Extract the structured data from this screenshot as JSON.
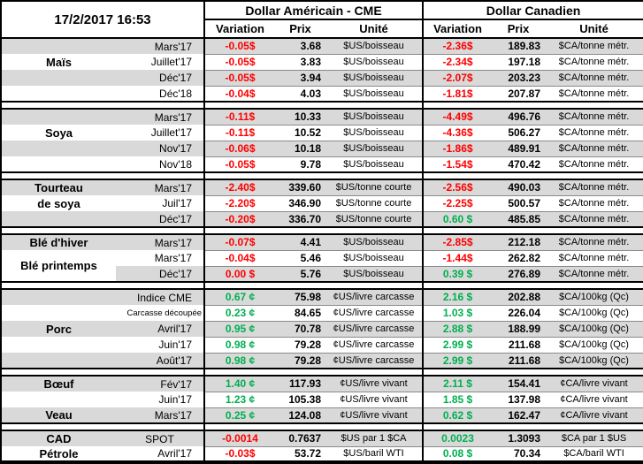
{
  "header": {
    "datetime": "17/2/2017 16:53",
    "usd_title": "Dollar Américain - CME",
    "cad_title": "Dollar Canadien",
    "columns": {
      "variation": "Variation",
      "prix": "Prix",
      "unite": "Unité"
    }
  },
  "colors": {
    "negative": "#FF0000",
    "positive": "#00B050",
    "stripe": "#D9D9D9",
    "border": "#000000"
  },
  "groups": [
    {
      "rows": [
        {
          "label": "",
          "month": "Mars'17",
          "us_var": "-0.05$",
          "us_var_color": "neg",
          "us_prix": "3.68",
          "us_unit": "$US/boisseau",
          "ca_var": "-2.36$",
          "ca_var_color": "neg",
          "ca_prix": "189.83",
          "ca_unit": "$CA/tonne métr."
        },
        {
          "label": "Maïs",
          "month": "Juillet'17",
          "us_var": "-0.05$",
          "us_var_color": "neg",
          "us_prix": "3.83",
          "us_unit": "$US/boisseau",
          "ca_var": "-2.34$",
          "ca_var_color": "neg",
          "ca_prix": "197.18",
          "ca_unit": "$CA/tonne métr."
        },
        {
          "label": "",
          "month": "Déc'17",
          "us_var": "-0.05$",
          "us_var_color": "neg",
          "us_prix": "3.94",
          "us_unit": "$US/boisseau",
          "ca_var": "-2.07$",
          "ca_var_color": "neg",
          "ca_prix": "203.23",
          "ca_unit": "$CA/tonne métr."
        },
        {
          "label": "",
          "month": "Déc'18",
          "us_var": "-0.04$",
          "us_var_color": "neg",
          "us_prix": "4.03",
          "us_unit": "$US/boisseau",
          "ca_var": "-1.81$",
          "ca_var_color": "neg",
          "ca_prix": "207.87",
          "ca_unit": "$CA/tonne métr."
        }
      ]
    },
    {
      "rows": [
        {
          "label": "",
          "month": "Mars'17",
          "us_var": "-0.11$",
          "us_var_color": "neg",
          "us_prix": "10.33",
          "us_unit": "$US/boisseau",
          "ca_var": "-4.49$",
          "ca_var_color": "neg",
          "ca_prix": "496.76",
          "ca_unit": "$CA/tonne métr."
        },
        {
          "label": "Soya",
          "month": "Juillet'17",
          "us_var": "-0.11$",
          "us_var_color": "neg",
          "us_prix": "10.52",
          "us_unit": "$US/boisseau",
          "ca_var": "-4.36$",
          "ca_var_color": "neg",
          "ca_prix": "506.27",
          "ca_unit": "$CA/tonne métr."
        },
        {
          "label": "",
          "month": "Nov'17",
          "us_var": "-0.06$",
          "us_var_color": "neg",
          "us_prix": "10.18",
          "us_unit": "$US/boisseau",
          "ca_var": "-1.86$",
          "ca_var_color": "neg",
          "ca_prix": "489.91",
          "ca_unit": "$CA/tonne métr."
        },
        {
          "label": "",
          "month": "Nov'18",
          "us_var": "-0.05$",
          "us_var_color": "neg",
          "us_prix": "9.78",
          "us_unit": "$US/boisseau",
          "ca_var": "-1.54$",
          "ca_var_color": "neg",
          "ca_prix": "470.42",
          "ca_unit": "$CA/tonne métr."
        }
      ]
    },
    {
      "rows": [
        {
          "label": "Tourteau",
          "month": "Mars'17",
          "us_var": "-2.40$",
          "us_var_color": "neg",
          "us_prix": "339.60",
          "us_unit": "$US/tonne courte",
          "ca_var": "-2.56$",
          "ca_var_color": "neg",
          "ca_prix": "490.03",
          "ca_unit": "$CA/tonne métr."
        },
        {
          "label": "de soya",
          "month": "Juil'17",
          "us_var": "-2.20$",
          "us_var_color": "neg",
          "us_prix": "346.90",
          "us_unit": "$US/tonne courte",
          "ca_var": "-2.25$",
          "ca_var_color": "neg",
          "ca_prix": "500.57",
          "ca_unit": "$CA/tonne métr."
        },
        {
          "label": "",
          "month": "Déc'17",
          "us_var": "-0.20$",
          "us_var_color": "neg",
          "us_prix": "336.70",
          "us_unit": "$US/tonne courte",
          "ca_var": "0.60 $",
          "ca_var_color": "pos",
          "ca_prix": "485.85",
          "ca_unit": "$CA/tonne métr."
        }
      ]
    },
    {
      "rows": [
        {
          "label": "Blé d'hiver",
          "month": "Mars'17",
          "us_var": "-0.07$",
          "us_var_color": "neg",
          "us_prix": "4.41",
          "us_unit": "$US/boisseau",
          "ca_var": "-2.85$",
          "ca_var_color": "neg",
          "ca_prix": "212.18",
          "ca_unit": "$CA/tonne métr."
        },
        {
          "label": "Blé printemps",
          "label_rowspan": 2,
          "month": "Mars'17",
          "us_var": "-0.04$",
          "us_var_color": "neg",
          "us_prix": "5.46",
          "us_unit": "$US/boisseau",
          "ca_var": "-1.44$",
          "ca_var_color": "neg",
          "ca_prix": "262.82",
          "ca_unit": "$CA/tonne métr."
        },
        {
          "label": "",
          "month": "Déc'17",
          "us_var": "0.00 $",
          "us_var_color": "neg",
          "us_prix": "5.76",
          "us_unit": "$US/boisseau",
          "ca_var": "0.39 $",
          "ca_var_color": "pos",
          "ca_prix": "276.89",
          "ca_unit": "$CA/tonne métr."
        }
      ]
    },
    {
      "rows": [
        {
          "label": "",
          "month": "Indice CME",
          "us_var": "0.67 ¢",
          "us_var_color": "pos",
          "us_prix": "75.98",
          "us_unit": "¢US/livre carcasse",
          "ca_var": "2.16 $",
          "ca_var_color": "pos",
          "ca_prix": "202.88",
          "ca_unit": "$CA/100kg (Qc)"
        },
        {
          "label": "",
          "month": "Carcasse découpée",
          "month_small": true,
          "us_var": "0.23 ¢",
          "us_var_color": "pos",
          "us_prix": "84.65",
          "us_unit": "¢US/livre carcasse",
          "ca_var": "1.03 $",
          "ca_var_color": "pos",
          "ca_prix": "226.04",
          "ca_unit": "$CA/100kg (Qc)"
        },
        {
          "label": "Porc",
          "month": "Avril'17",
          "us_var": "0.95 ¢",
          "us_var_color": "pos",
          "us_prix": "70.78",
          "us_unit": "¢US/livre carcasse",
          "ca_var": "2.88 $",
          "ca_var_color": "pos",
          "ca_prix": "188.99",
          "ca_unit": "$CA/100kg (Qc)"
        },
        {
          "label": "",
          "month": "Juin'17",
          "us_var": "0.98 ¢",
          "us_var_color": "pos",
          "us_prix": "79.28",
          "us_unit": "¢US/livre carcasse",
          "ca_var": "2.99 $",
          "ca_var_color": "pos",
          "ca_prix": "211.68",
          "ca_unit": "$CA/100kg (Qc)"
        },
        {
          "label": "",
          "month": "Août'17",
          "us_var": "0.98 ¢",
          "us_var_color": "pos",
          "us_prix": "79.28",
          "us_unit": "¢US/livre carcasse",
          "ca_var": "2.99 $",
          "ca_var_color": "pos",
          "ca_prix": "211.68",
          "ca_unit": "$CA/100kg (Qc)"
        }
      ]
    },
    {
      "rows": [
        {
          "label": "Bœuf",
          "month": "Fév'17",
          "us_var": "1.40 ¢",
          "us_var_color": "pos",
          "us_prix": "117.93",
          "us_unit": "¢US/livre vivant",
          "ca_var": "2.11 $",
          "ca_var_color": "pos",
          "ca_prix": "154.41",
          "ca_unit": "¢CA/livre vivant"
        },
        {
          "label": "",
          "month": "Juin'17",
          "us_var": "1.23 ¢",
          "us_var_color": "pos",
          "us_prix": "105.38",
          "us_unit": "¢US/livre vivant",
          "ca_var": "1.85 $",
          "ca_var_color": "pos",
          "ca_prix": "137.98",
          "ca_unit": "¢CA/livre vivant"
        },
        {
          "label": "Veau",
          "month": "Mars'17",
          "us_var": "0.25 ¢",
          "us_var_color": "pos",
          "us_prix": "124.08",
          "us_unit": "¢US/livre vivant",
          "ca_var": "0.62 $",
          "ca_var_color": "pos",
          "ca_prix": "162.47",
          "ca_unit": "¢CA/livre vivant"
        }
      ]
    },
    {
      "rows": [
        {
          "label": "CAD",
          "month": "SPOT",
          "month_center": true,
          "us_var": "-0.0014",
          "us_var_color": "neg",
          "us_prix": "0.7637",
          "us_unit": "$US par 1 $CA",
          "ca_var": "0.0023",
          "ca_var_color": "pos",
          "ca_prix": "1.3093",
          "ca_unit": "$CA par 1 $US"
        },
        {
          "label": "Pétrole",
          "month": "Avril'17",
          "us_var": "-0.03$",
          "us_var_color": "neg",
          "us_prix": "53.72",
          "us_unit": "$US/baril WTI",
          "ca_var": "0.08 $",
          "ca_var_color": "pos",
          "ca_prix": "70.34",
          "ca_unit": "$CA/baril WTI"
        }
      ]
    }
  ]
}
